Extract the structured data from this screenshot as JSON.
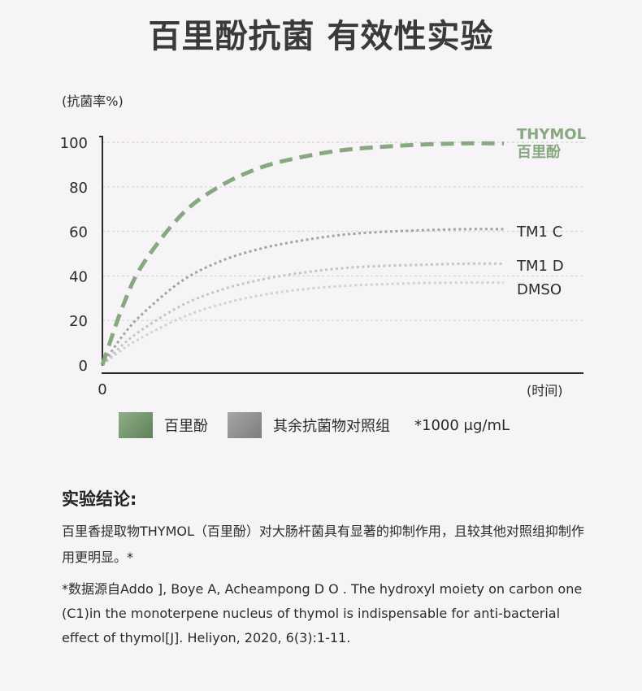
{
  "page": {
    "title": "百里酚抗菌 有效性实验"
  },
  "chart_data": {
    "type": "line",
    "ylabel": "(抗菌率%)",
    "xlabel": "(时间)",
    "ylim": [
      0,
      100
    ],
    "yticks": [
      0,
      20,
      40,
      60,
      80,
      100
    ],
    "x_origin_label": "0",
    "x": [
      0,
      0.05,
      0.1,
      0.2,
      0.3,
      0.4,
      0.5,
      0.6,
      0.7,
      0.8,
      0.9,
      1.0
    ],
    "grid": true,
    "series": [
      {
        "name_lines": [
          "THYMOL",
          "百里酚"
        ],
        "color": "#88a882",
        "style": "dashed-thick",
        "values": [
          0,
          26,
          45,
          68,
          81,
          89,
          93.5,
          96.5,
          98,
          99,
          99.5,
          99.5
        ]
      },
      {
        "name_lines": [
          "TM1 C"
        ],
        "color": "#a3a3a3",
        "style": "dotted",
        "values": [
          0,
          13,
          23,
          38,
          47,
          52.5,
          56,
          58.5,
          59.8,
          60.5,
          61,
          61
        ]
      },
      {
        "name_lines": [
          "TM1 D"
        ],
        "color": "#c5c5c5",
        "style": "dotted",
        "values": [
          0,
          9,
          16,
          27,
          34,
          38.5,
          41.5,
          43.5,
          44.5,
          45,
          45.5,
          45.5
        ]
      },
      {
        "name_lines": [
          "DMSO"
        ],
        "color": "#d2d2d2",
        "style": "dotted",
        "values": [
          0,
          7,
          12.5,
          21.5,
          27.5,
          31.5,
          34,
          35.5,
          36.3,
          36.8,
          37,
          37
        ]
      }
    ]
  },
  "legend": {
    "items": [
      {
        "label": "百里酚",
        "color": "#6f9069"
      },
      {
        "label": "其余抗菌物对照组",
        "color": "#8f8f8f"
      }
    ],
    "note": "*1000 μg/mL"
  },
  "conclusion": {
    "title": "实验结论:",
    "text": "百里香提取物THYMOL（百里酚）对大肠杆菌具有显著的抑制作用，且较其他对照组抑制作用更明显。*",
    "reference": "*数据源自Addo ], Boye A, Acheampong D O . The hydroxyl moiety on carbon one (C1)in the monoterpene nucleus of thymol is indispensable for anti-bacterial effect of thymol[J]. Heliyon, 2020, 6(3):1-11."
  }
}
